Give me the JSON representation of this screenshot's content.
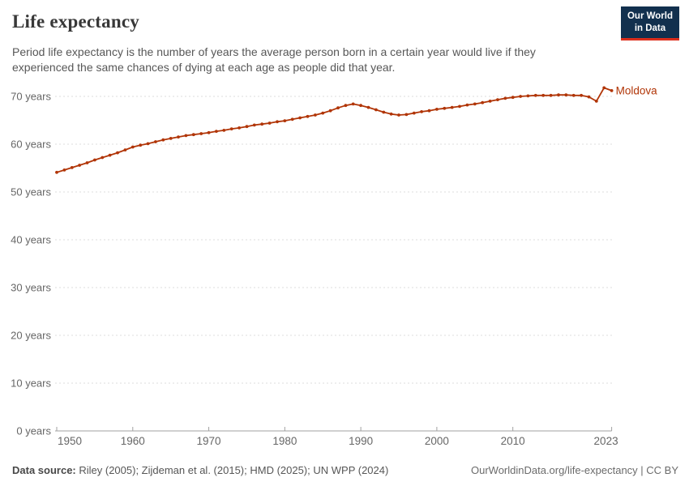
{
  "header": {
    "title": "Life expectancy",
    "subtitle_line1": "Period life expectancy is the number of years the average person born in a certain year would live if they",
    "subtitle_line2": "experienced the same chances of dying at each age as people did that year.",
    "logo": {
      "line1": "Our World",
      "line2": "in Data"
    }
  },
  "footer": {
    "datasource_label": "Data source:",
    "datasource_text": " Riley (2005); Zijdeman et al. (2015); HMD (2025); UN WPP (2024)",
    "link_text": "OurWorldinData.org/life-expectancy | CC BY"
  },
  "colors": {
    "series_red": "#B13507",
    "logo_navy": "#12304e",
    "logo_red": "#dc2e1c",
    "gridline": "#dcdcdc",
    "axis": "#a1a1a1",
    "tick_text": "#666666",
    "title_text": "#383838",
    "subtitle_text": "#575757"
  },
  "chart_data": {
    "type": "line",
    "title": "Life expectancy",
    "xlabel": "",
    "ylabel": "",
    "xlim": [
      1950,
      2023
    ],
    "ylim": [
      0,
      73
    ],
    "grid": "horizontal-dashed",
    "legend_position": "end-of-line-label",
    "y_ticks": [
      0,
      10,
      20,
      30,
      40,
      50,
      60,
      70
    ],
    "y_tick_suffix": " years",
    "x_ticks": [
      1950,
      1960,
      1970,
      1980,
      1990,
      2000,
      2010,
      2023
    ],
    "x": [
      1950,
      1951,
      1952,
      1953,
      1954,
      1955,
      1956,
      1957,
      1958,
      1959,
      1960,
      1961,
      1962,
      1963,
      1964,
      1965,
      1966,
      1967,
      1968,
      1969,
      1970,
      1971,
      1972,
      1973,
      1974,
      1975,
      1976,
      1977,
      1978,
      1979,
      1980,
      1981,
      1982,
      1983,
      1984,
      1985,
      1986,
      1987,
      1988,
      1989,
      1990,
      1991,
      1992,
      1993,
      1994,
      1995,
      1996,
      1997,
      1998,
      1999,
      2000,
      2001,
      2002,
      2003,
      2004,
      2005,
      2006,
      2007,
      2008,
      2009,
      2010,
      2011,
      2012,
      2013,
      2014,
      2015,
      2016,
      2017,
      2018,
      2019,
      2020,
      2021,
      2022,
      2023
    ],
    "series": [
      {
        "name": "Moldova",
        "color": "#B13507",
        "values": [
          54.1,
          54.6,
          55.1,
          55.6,
          56.1,
          56.7,
          57.2,
          57.7,
          58.2,
          58.8,
          59.4,
          59.8,
          60.1,
          60.5,
          60.9,
          61.2,
          61.5,
          61.8,
          62.0,
          62.2,
          62.4,
          62.7,
          62.9,
          63.2,
          63.4,
          63.7,
          64.0,
          64.2,
          64.4,
          64.7,
          64.9,
          65.2,
          65.5,
          65.8,
          66.1,
          66.5,
          67.0,
          67.6,
          68.1,
          68.4,
          68.1,
          67.7,
          67.2,
          66.7,
          66.3,
          66.1,
          66.2,
          66.5,
          66.8,
          67.0,
          67.3,
          67.5,
          67.7,
          67.9,
          68.2,
          68.4,
          68.7,
          69.0,
          69.3,
          69.6,
          69.8,
          70.0,
          70.1,
          70.2,
          70.2,
          70.2,
          70.3,
          70.3,
          70.2,
          70.2,
          69.9,
          69.0,
          71.8,
          71.2
        ]
      }
    ]
  }
}
